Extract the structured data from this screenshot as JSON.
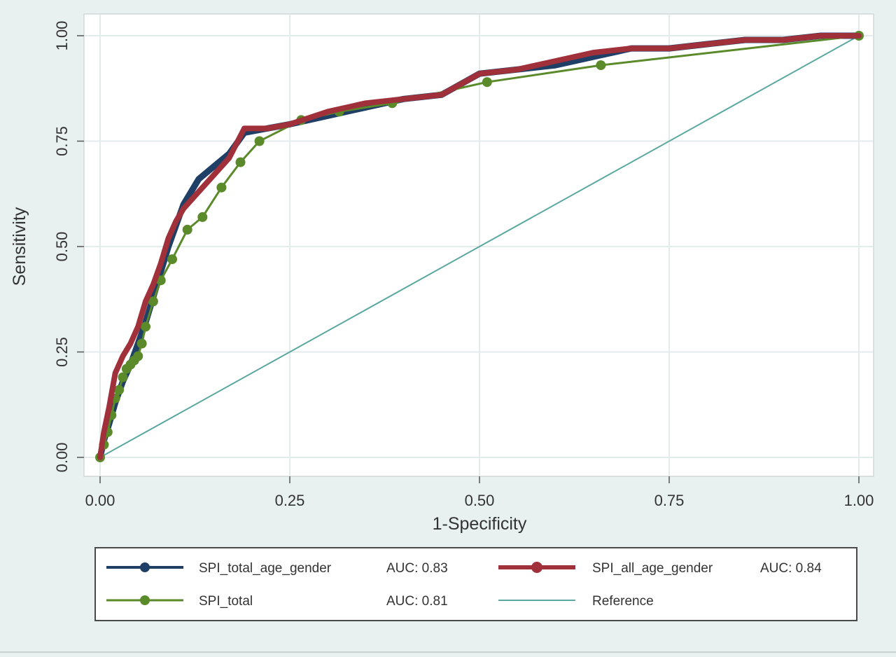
{
  "chart_data": {
    "type": "line",
    "xlabel": "1-Specificity",
    "ylabel": "Sensitivity",
    "xlim": [
      0,
      1
    ],
    "ylim": [
      0,
      1
    ],
    "xticks": [
      "0.00",
      "0.25",
      "0.50",
      "0.75",
      "1.00"
    ],
    "yticks": [
      "0.00",
      "0.25",
      "0.50",
      "0.75",
      "1.00"
    ],
    "grid": true,
    "legend_position": "bottom",
    "series": [
      {
        "name": "SPI_total_age_gender",
        "auc_label": "AUC: 0.83",
        "color": "#1f3f66",
        "markers": false,
        "points": [
          [
            0,
            0
          ],
          [
            0.005,
            0.04
          ],
          [
            0.012,
            0.08
          ],
          [
            0.02,
            0.13
          ],
          [
            0.03,
            0.18
          ],
          [
            0.04,
            0.22
          ],
          [
            0.05,
            0.27
          ],
          [
            0.06,
            0.32
          ],
          [
            0.07,
            0.38
          ],
          [
            0.08,
            0.44
          ],
          [
            0.09,
            0.5
          ],
          [
            0.1,
            0.55
          ],
          [
            0.11,
            0.6
          ],
          [
            0.13,
            0.66
          ],
          [
            0.15,
            0.69
          ],
          [
            0.17,
            0.72
          ],
          [
            0.19,
            0.77
          ],
          [
            0.22,
            0.78
          ],
          [
            0.25,
            0.79
          ],
          [
            0.3,
            0.81
          ],
          [
            0.35,
            0.83
          ],
          [
            0.4,
            0.85
          ],
          [
            0.45,
            0.86
          ],
          [
            0.5,
            0.91
          ],
          [
            0.55,
            0.92
          ],
          [
            0.6,
            0.93
          ],
          [
            0.65,
            0.95
          ],
          [
            0.7,
            0.97
          ],
          [
            0.75,
            0.97
          ],
          [
            0.8,
            0.98
          ],
          [
            0.85,
            0.99
          ],
          [
            0.9,
            0.99
          ],
          [
            0.95,
            1
          ],
          [
            1,
            1
          ]
        ]
      },
      {
        "name": "SPI_all_age_gender",
        "auc_label": "AUC: 0.84",
        "color": "#a0303a",
        "markers": false,
        "points": [
          [
            0,
            0
          ],
          [
            0.005,
            0.06
          ],
          [
            0.012,
            0.12
          ],
          [
            0.02,
            0.2
          ],
          [
            0.03,
            0.24
          ],
          [
            0.04,
            0.27
          ],
          [
            0.05,
            0.31
          ],
          [
            0.06,
            0.37
          ],
          [
            0.07,
            0.41
          ],
          [
            0.08,
            0.46
          ],
          [
            0.09,
            0.52
          ],
          [
            0.1,
            0.56
          ],
          [
            0.11,
            0.59
          ],
          [
            0.13,
            0.63
          ],
          [
            0.15,
            0.67
          ],
          [
            0.17,
            0.71
          ],
          [
            0.19,
            0.78
          ],
          [
            0.22,
            0.78
          ],
          [
            0.25,
            0.79
          ],
          [
            0.3,
            0.82
          ],
          [
            0.35,
            0.84
          ],
          [
            0.4,
            0.85
          ],
          [
            0.45,
            0.86
          ],
          [
            0.5,
            0.91
          ],
          [
            0.55,
            0.92
          ],
          [
            0.6,
            0.94
          ],
          [
            0.65,
            0.96
          ],
          [
            0.7,
            0.97
          ],
          [
            0.75,
            0.97
          ],
          [
            0.8,
            0.98
          ],
          [
            0.85,
            0.99
          ],
          [
            0.9,
            0.99
          ],
          [
            0.95,
            1
          ],
          [
            1,
            1
          ]
        ]
      },
      {
        "name": "SPI_total",
        "auc_label": "AUC: 0.81",
        "color": "#5a8a2a",
        "markers": true,
        "points": [
          [
            0,
            0
          ],
          [
            0.005,
            0.03
          ],
          [
            0.01,
            0.06
          ],
          [
            0.015,
            0.1
          ],
          [
            0.02,
            0.14
          ],
          [
            0.025,
            0.16
          ],
          [
            0.03,
            0.19
          ],
          [
            0.035,
            0.21
          ],
          [
            0.04,
            0.22
          ],
          [
            0.045,
            0.23
          ],
          [
            0.05,
            0.24
          ],
          [
            0.055,
            0.27
          ],
          [
            0.06,
            0.31
          ],
          [
            0.07,
            0.37
          ],
          [
            0.08,
            0.42
          ],
          [
            0.095,
            0.47
          ],
          [
            0.115,
            0.54
          ],
          [
            0.135,
            0.57
          ],
          [
            0.16,
            0.64
          ],
          [
            0.185,
            0.7
          ],
          [
            0.21,
            0.75
          ],
          [
            0.265,
            0.8
          ],
          [
            0.315,
            0.82
          ],
          [
            0.385,
            0.84
          ],
          [
            0.51,
            0.89
          ],
          [
            0.66,
            0.93
          ],
          [
            1,
            1
          ]
        ]
      },
      {
        "name": "Reference",
        "auc_label": "",
        "color": "#5aa8a0",
        "markers": false,
        "points": [
          [
            0,
            0
          ],
          [
            1,
            1
          ]
        ]
      }
    ]
  }
}
